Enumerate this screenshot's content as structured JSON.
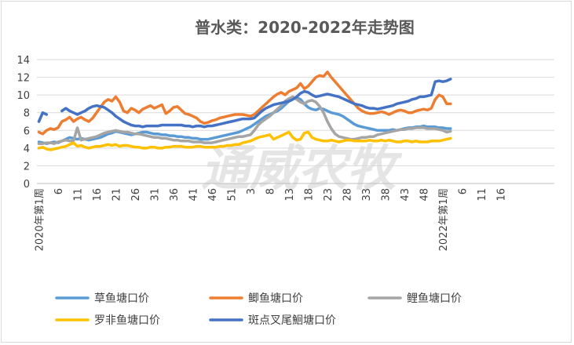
{
  "chart_data": {
    "type": "line",
    "title": "普水类：2020-2022年走势图",
    "watermark": "通威农牧",
    "y_axis": {
      "min": 0,
      "max": 14,
      "step": 2,
      "ticks": [
        "0",
        "2",
        "4",
        "6",
        "8",
        "10",
        "12",
        "14"
      ]
    },
    "x_tick_labels": [
      "2020年第1周",
      "6",
      "11",
      "16",
      "21",
      "26",
      "31",
      "36",
      "41",
      "46",
      "51",
      "3",
      "8",
      "13",
      "18",
      "23",
      "28",
      "33",
      "38",
      "43",
      "48",
      "2022年第1周",
      "6",
      "11",
      "16"
    ],
    "series": [
      {
        "name": "草鱼塘口价",
        "color": "#5b9bd5",
        "values": [
          4.7,
          4.6,
          4.5,
          4.6,
          4.7,
          4.6,
          4.8,
          5.0,
          5.2,
          5.1,
          5.0,
          5.1,
          5.0,
          4.9,
          5.0,
          5.1,
          5.2,
          5.4,
          5.6,
          5.7,
          5.9,
          5.8,
          5.7,
          5.6,
          5.5,
          5.6,
          5.7,
          5.8,
          5.8,
          5.7,
          5.6,
          5.6,
          5.5,
          5.5,
          5.4,
          5.4,
          5.3,
          5.3,
          5.2,
          5.2,
          5.1,
          5.1,
          5.0,
          5.0,
          5.0,
          5.1,
          5.2,
          5.3,
          5.4,
          5.5,
          5.6,
          5.7,
          5.8,
          6.0,
          6.2,
          6.4,
          6.7,
          7.0,
          7.3,
          7.6,
          7.8,
          8.0,
          8.2,
          8.5,
          8.9,
          9.3,
          9.6,
          9.7,
          9.5,
          9.0,
          8.6,
          8.4,
          8.3,
          8.5,
          8.4,
          8.2,
          8.0,
          7.9,
          7.8,
          7.6,
          7.3,
          7.0,
          6.7,
          6.5,
          6.4,
          6.3,
          6.2,
          6.1,
          6.0,
          6.0,
          6.0,
          6.0,
          6.1,
          6.0,
          6.1,
          6.2,
          6.3,
          6.3,
          6.4,
          6.4,
          6.5,
          6.4,
          6.4,
          6.4,
          6.3,
          6.3,
          6.2,
          6.2
        ]
      },
      {
        "name": "鲫鱼塘口价",
        "color": "#ed7d31",
        "values": [
          5.8,
          5.6,
          6.0,
          6.2,
          6.1,
          6.3,
          7.0,
          7.2,
          7.5,
          7.0,
          7.3,
          7.5,
          7.2,
          7.0,
          7.4,
          8.0,
          8.6,
          9.2,
          9.5,
          9.3,
          9.8,
          9.2,
          8.2,
          8.0,
          8.5,
          8.3,
          8.0,
          8.4,
          8.6,
          8.8,
          8.5,
          8.7,
          8.9,
          7.9,
          8.2,
          8.6,
          8.7,
          8.3,
          7.9,
          7.8,
          7.6,
          7.4,
          7.0,
          6.8,
          6.9,
          7.1,
          7.2,
          7.4,
          7.5,
          7.6,
          7.7,
          7.8,
          7.8,
          7.8,
          7.7,
          7.6,
          7.8,
          8.2,
          8.6,
          9.0,
          9.4,
          9.8,
          10.1,
          10.3,
          10.0,
          10.4,
          10.6,
          10.8,
          11.3,
          10.7,
          11.0,
          11.5,
          12.0,
          12.2,
          12.1,
          12.6,
          12.0,
          11.5,
          11.0,
          10.5,
          10.0,
          9.5,
          9.0,
          8.5,
          8.2,
          8.0,
          7.9,
          7.9,
          8.0,
          8.1,
          8.0,
          7.8,
          8.0,
          8.2,
          8.3,
          8.2,
          8.0,
          8.0,
          8.2,
          8.3,
          8.4,
          8.3,
          8.5,
          9.5,
          10.0,
          9.8,
          9.0,
          9.0
        ]
      },
      {
        "name": "鲤鱼塘口价",
        "color": "#a5a5a5",
        "values": [
          4.5,
          4.5,
          4.6,
          4.6,
          4.5,
          4.7,
          4.8,
          4.9,
          4.8,
          4.8,
          6.3,
          4.9,
          5.0,
          5.1,
          5.2,
          5.3,
          5.5,
          5.7,
          5.8,
          5.9,
          6.0,
          5.9,
          5.8,
          5.8,
          5.7,
          5.6,
          5.6,
          5.5,
          5.4,
          5.3,
          5.2,
          5.2,
          5.1,
          5.1,
          5.0,
          4.9,
          4.9,
          4.8,
          4.8,
          4.8,
          4.7,
          4.7,
          4.7,
          4.6,
          4.6,
          4.6,
          4.7,
          4.8,
          4.9,
          5.0,
          5.1,
          5.2,
          5.3,
          5.3,
          5.4,
          5.5,
          6.0,
          6.6,
          7.0,
          7.3,
          7.6,
          8.0,
          8.4,
          8.8,
          9.3,
          9.6,
          9.8,
          9.5,
          9.2,
          9.0,
          9.3,
          9.4,
          9.2,
          8.7,
          8.0,
          7.0,
          6.2,
          5.6,
          5.3,
          5.2,
          5.1,
          5.0,
          5.0,
          5.1,
          5.2,
          5.2,
          5.3,
          5.3,
          5.5,
          5.6,
          5.7,
          5.8,
          5.9,
          6.0,
          6.1,
          6.1,
          6.2,
          6.2,
          6.3,
          6.3,
          6.3,
          6.2,
          6.2,
          6.2,
          6.1,
          6.0,
          5.8,
          5.9
        ]
      },
      {
        "name": "罗非鱼塘口价",
        "color": "#ffc000",
        "values": [
          4.0,
          4.1,
          3.9,
          3.8,
          3.9,
          4.0,
          4.1,
          4.2,
          4.4,
          4.6,
          4.2,
          4.3,
          4.1,
          4.0,
          4.1,
          4.2,
          4.2,
          4.3,
          4.4,
          4.3,
          4.4,
          4.2,
          4.3,
          4.3,
          4.2,
          4.1,
          4.1,
          4.0,
          4.0,
          4.1,
          4.1,
          4.0,
          4.0,
          4.1,
          4.1,
          4.2,
          4.2,
          4.2,
          4.1,
          4.1,
          4.1,
          4.2,
          4.2,
          4.1,
          4.1,
          4.1,
          4.1,
          4.2,
          4.2,
          4.3,
          4.3,
          4.4,
          4.4,
          4.6,
          4.7,
          4.8,
          5.0,
          5.2,
          5.3,
          5.4,
          5.5,
          5.0,
          5.2,
          5.4,
          5.6,
          5.8,
          5.2,
          4.9,
          5.0,
          5.7,
          5.8,
          5.2,
          5.0,
          4.9,
          4.8,
          4.8,
          4.9,
          4.8,
          4.7,
          4.8,
          4.9,
          4.9,
          4.8,
          4.8,
          4.8,
          4.8,
          4.9,
          4.8,
          4.8,
          4.9,
          4.8,
          4.9,
          4.8,
          4.7,
          4.7,
          4.8,
          4.8,
          4.7,
          4.8,
          4.7,
          4.7,
          4.7,
          4.8,
          4.8,
          4.8,
          4.9,
          5.0,
          5.1
        ]
      },
      {
        "name": "斑点叉尾鮰塘口价",
        "color": "#4472c4",
        "values": [
          7.0,
          8.0,
          7.8,
          null,
          null,
          null,
          8.2,
          8.5,
          8.2,
          8.0,
          7.8,
          8.0,
          8.2,
          8.5,
          8.7,
          8.8,
          8.7,
          8.6,
          8.3,
          8.0,
          7.6,
          7.3,
          7.0,
          6.8,
          6.6,
          6.5,
          6.5,
          6.4,
          6.5,
          6.5,
          6.5,
          6.5,
          6.6,
          6.6,
          6.6,
          6.6,
          6.6,
          6.6,
          6.5,
          6.5,
          6.4,
          6.5,
          6.5,
          6.4,
          6.5,
          6.5,
          6.6,
          6.7,
          6.8,
          6.9,
          7.0,
          7.1,
          7.2,
          7.3,
          7.3,
          7.3,
          7.4,
          7.8,
          8.2,
          8.5,
          8.7,
          8.9,
          9.0,
          9.1,
          9.2,
          9.3,
          9.5,
          9.8,
          10.2,
          10.4,
          10.3,
          10.0,
          9.8,
          9.9,
          10.0,
          10.1,
          10.0,
          9.9,
          9.8,
          9.6,
          9.4,
          9.2,
          9.0,
          8.9,
          8.8,
          8.6,
          8.5,
          8.5,
          8.4,
          8.5,
          8.6,
          8.7,
          8.8,
          9.0,
          9.1,
          9.2,
          9.3,
          9.5,
          9.6,
          9.8,
          9.8,
          9.9,
          10.0,
          11.5,
          11.6,
          11.5,
          11.6,
          11.8
        ]
      }
    ]
  }
}
